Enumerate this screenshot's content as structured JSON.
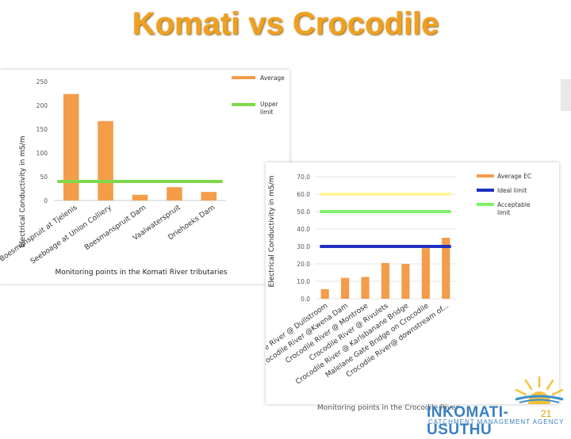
{
  "title": "Komati vs Crocodile",
  "footer_caption": "Monitoring points in the Crocodile River",
  "logo": {
    "text": "INKOMATI-USUTHU",
    "subtext": "CATCHMENT MANAGEMENT AGENCY"
  },
  "page_number": "21",
  "colors": {
    "bar": "#f39c4a",
    "upper_limit": "#7ed84a",
    "ideal": "#1f2fbf",
    "acceptable": "#7ef26a",
    "title": "#f0a020",
    "limit_yellow": "#fff59a"
  },
  "chart_data": [
    {
      "type": "bar",
      "ylabel": "Electrical Conductivity in mS/m",
      "xlabel": "Monitoring points in the Komati River tributaries",
      "ylim": [
        0,
        250
      ],
      "yticks": [
        "0",
        "50",
        "100",
        "150",
        "200",
        "250"
      ],
      "categories": [
        "Boesmanspruit at Tjelenis",
        "Seeboage at Union Colliery",
        "Boesmanspruit Dam",
        "Vaalwaterspruit",
        "Driehoeks Dam"
      ],
      "series": [
        {
          "name": "Average",
          "values": [
            224,
            167,
            12,
            28,
            18
          ]
        }
      ],
      "reference_lines": [
        {
          "name": "Upper limit",
          "value": 40
        }
      ],
      "legend": "right"
    },
    {
      "type": "bar",
      "ylabel": "Electrical Conductivity in mS/m",
      "xlabel": "Monitoring points in the Crocodile River",
      "ylim": [
        0,
        70
      ],
      "yticks": [
        "0.0",
        "10.0",
        "20.0",
        "30.0",
        "40.0",
        "50.0",
        "60.0",
        "70.0"
      ],
      "categories": [
        "Crocodile River @ Dullstroom",
        "Crocodile River @Kwena Dam",
        "Crocodile River @ Montrose",
        "Crocodile River @ Rivulets",
        "Crocodile River @ Karlsbanane Bridge",
        "Malelane Gate Bridge on Crocodile",
        "Crocodile River@ downstream of..."
      ],
      "series": [
        {
          "name": "Average EC",
          "values": [
            5.5,
            12,
            12.5,
            20.5,
            20,
            29,
            35
          ]
        }
      ],
      "reference_lines": [
        {
          "name": "Ideal limit",
          "value": 30
        },
        {
          "name": "Acceptable limit",
          "value": 50
        },
        {
          "name": "",
          "value": 60
        }
      ],
      "legend": "right"
    }
  ]
}
